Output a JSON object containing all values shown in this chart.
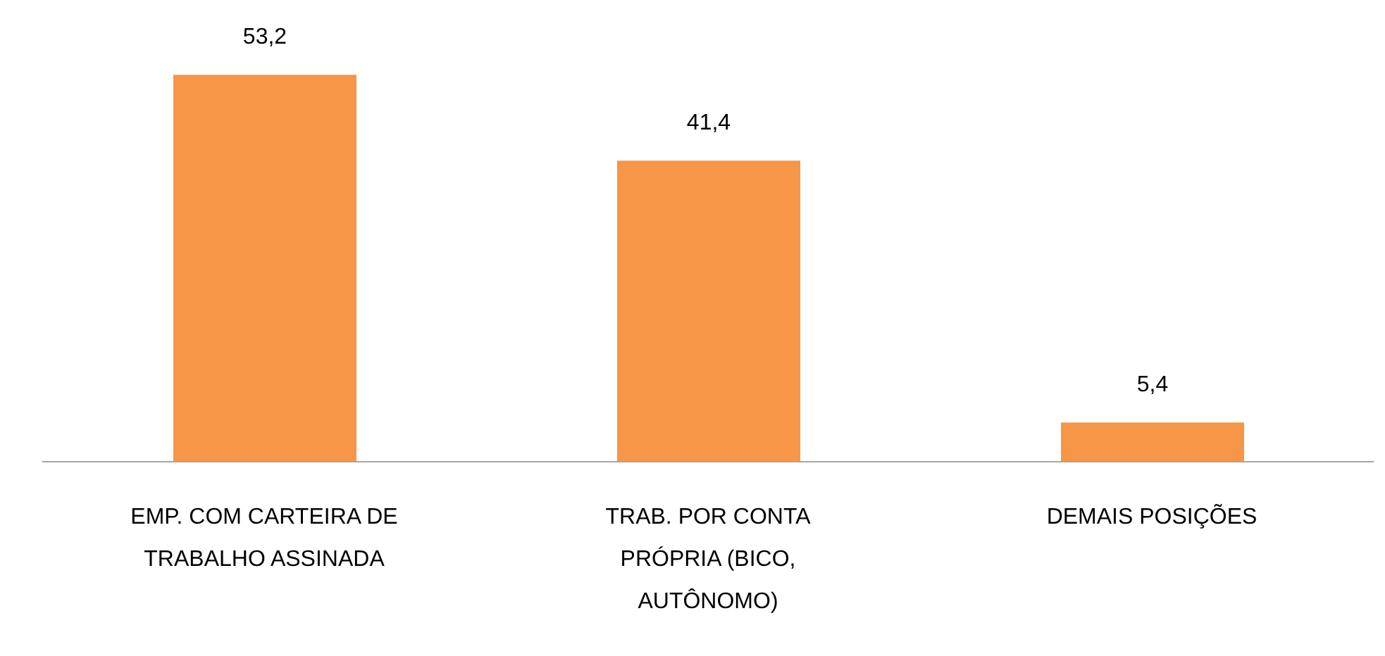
{
  "chart_data": {
    "type": "bar",
    "categories": [
      "EMP. COM CARTEIRA DE TRABALHO ASSINADA",
      "TRAB. POR CONTA PRÓPRIA (BICO, AUTÔNOMO)",
      "DEMAIS POSIÇÕES"
    ],
    "values": [
      53.2,
      41.4,
      5.4
    ],
    "value_labels": [
      "53,2",
      "41,4",
      "5,4"
    ],
    "color": "#f79646",
    "grid": false
  }
}
